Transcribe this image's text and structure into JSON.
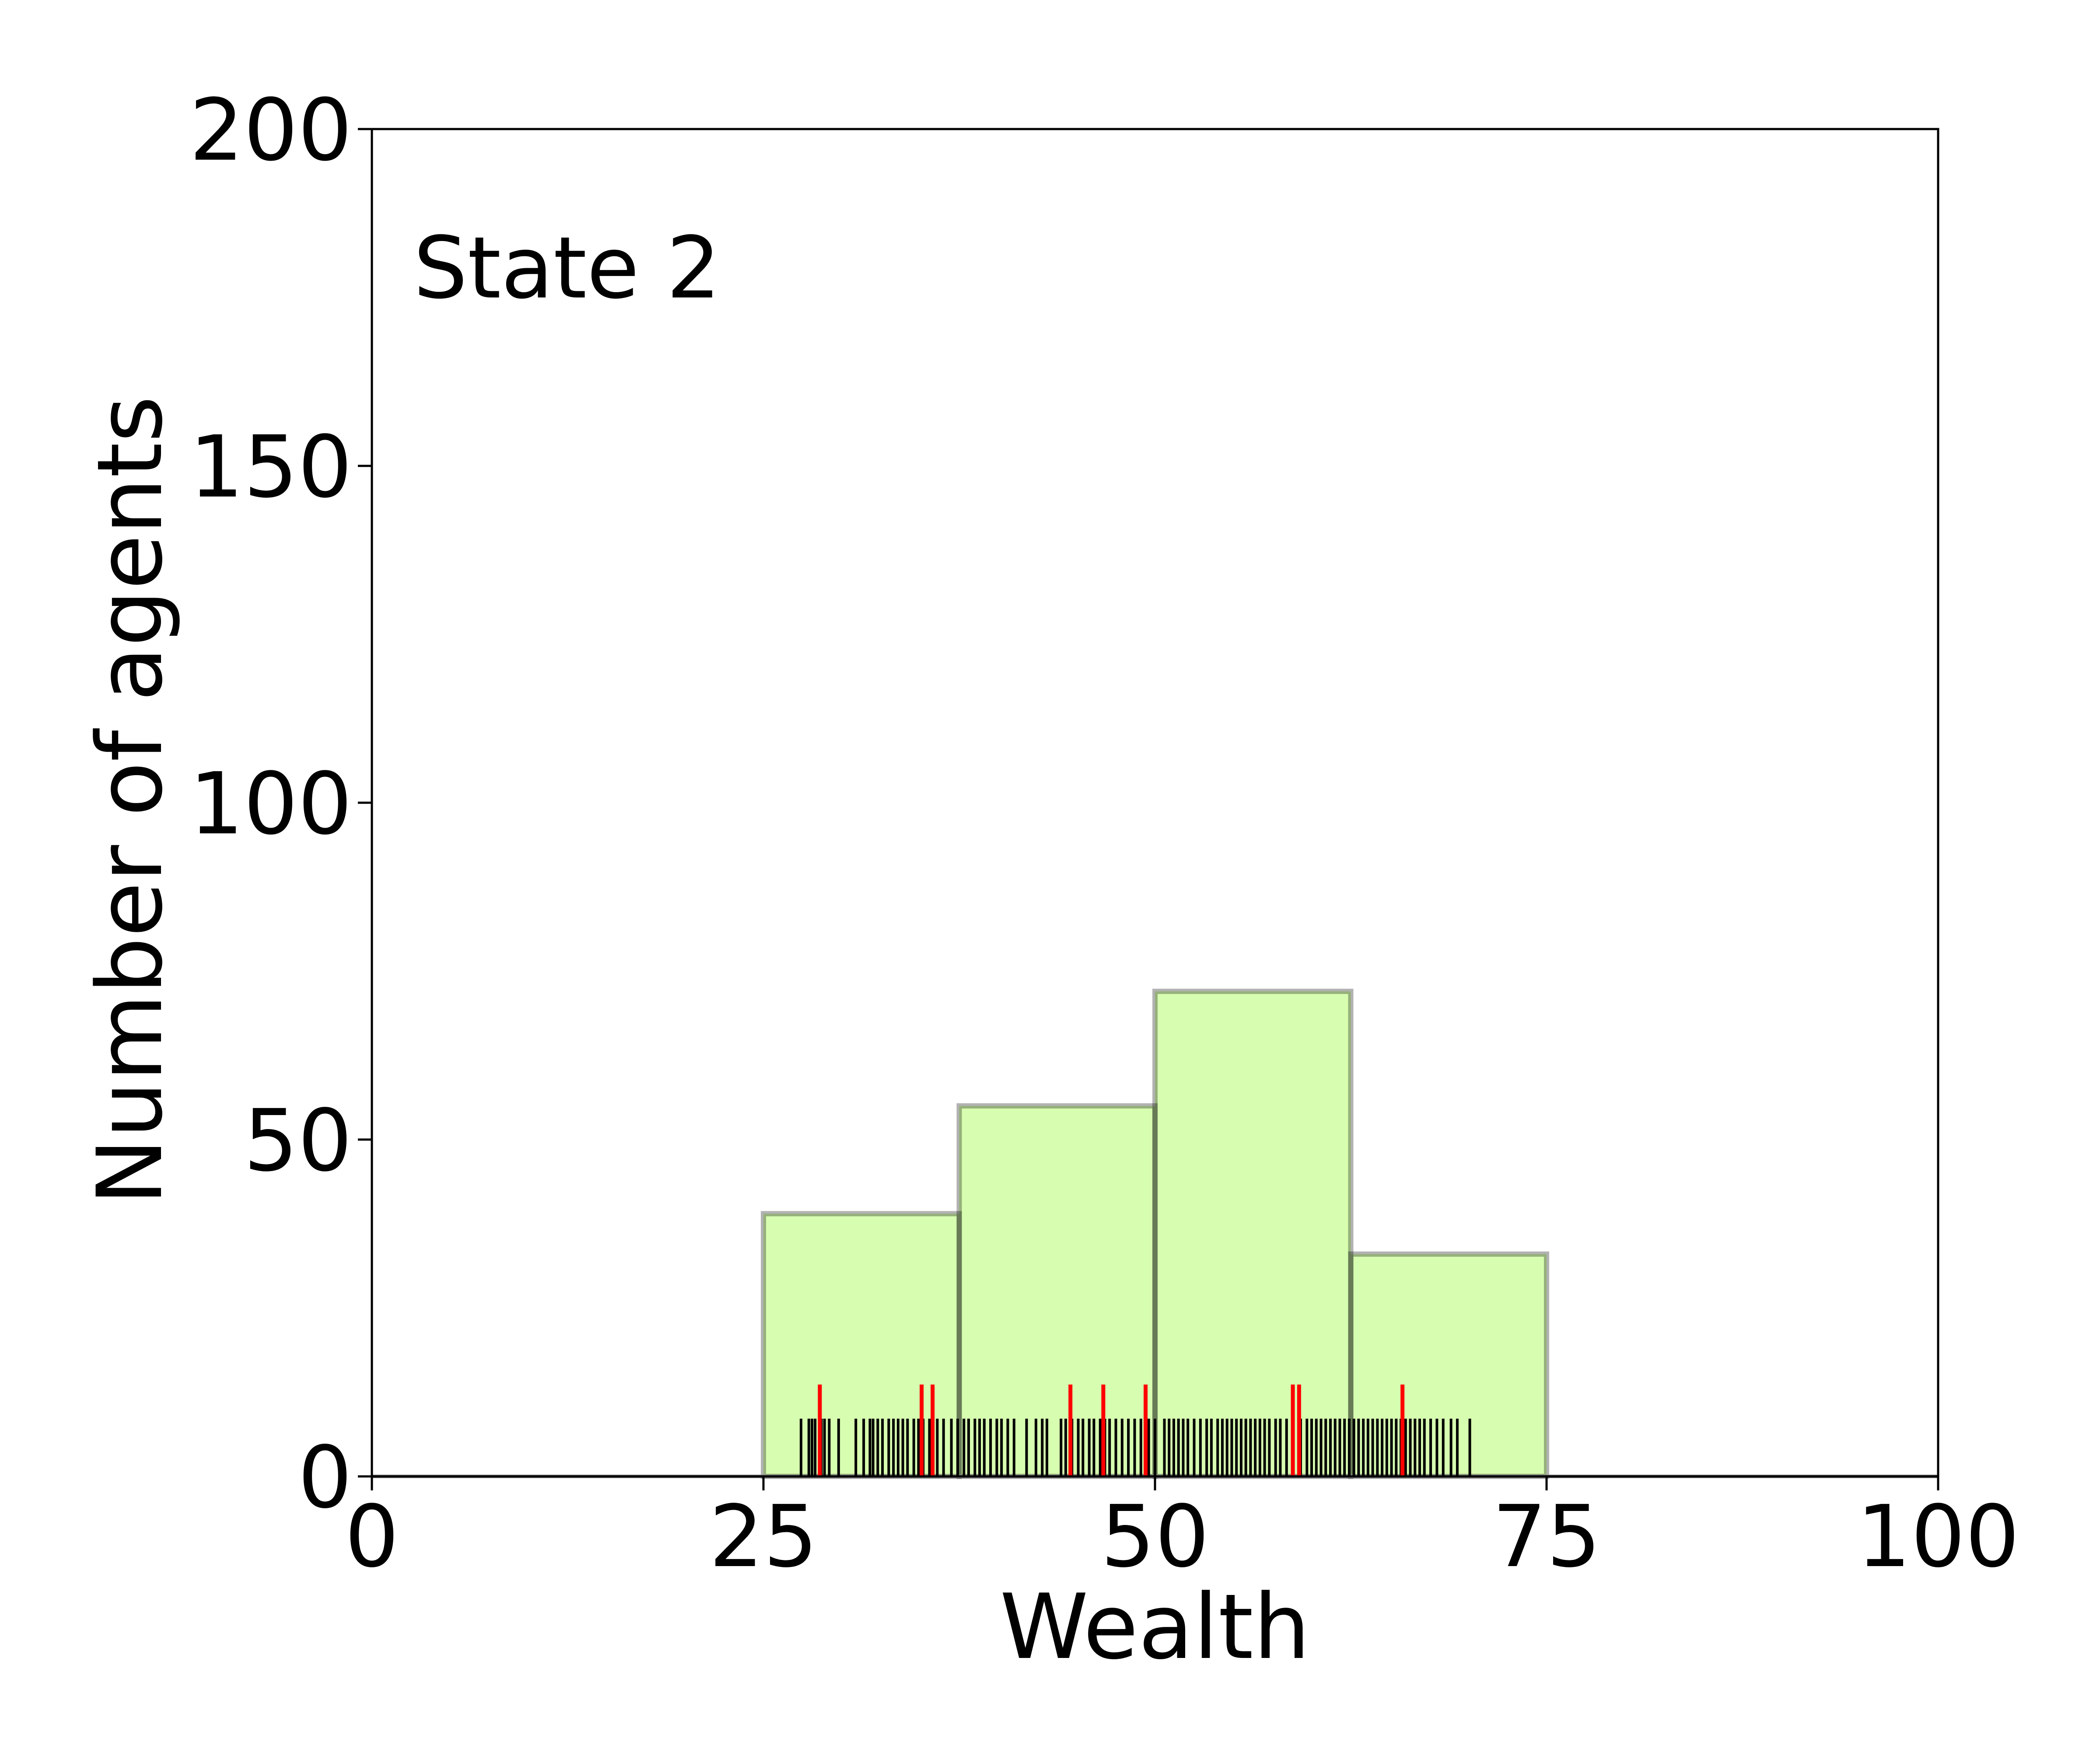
{
  "chart_data": {
    "type": "histogram",
    "annotation": "State 2",
    "xlabel": "Wealth",
    "ylabel": "Number of agents",
    "xlim": [
      0,
      100
    ],
    "ylim": [
      0,
      200
    ],
    "x_ticks": [
      0,
      25,
      50,
      75,
      100
    ],
    "y_ticks": [
      0,
      50,
      100,
      150,
      200
    ],
    "grid": false,
    "colors": {
      "bar_fill": "#d7fdb0",
      "bar_edge": "#a0a0a0",
      "rug_main": "#000000",
      "rug_highlight": "#ff0000"
    },
    "bins": [
      {
        "start": 25,
        "end": 37.5,
        "count": 39
      },
      {
        "start": 37.5,
        "end": 50,
        "count": 55
      },
      {
        "start": 50,
        "end": 62.5,
        "count": 72
      },
      {
        "start": 62.5,
        "end": 75,
        "count": 33
      }
    ],
    "rug_main_values": [
      27.4,
      27.9,
      28.1,
      28.3,
      28.7,
      28.9,
      29.2,
      29.8,
      30.9,
      31.4,
      31.8,
      32.0,
      32.3,
      32.6,
      33.0,
      33.3,
      33.6,
      33.9,
      34.2,
      34.6,
      34.9,
      35.2,
      35.6,
      36.1,
      36.5,
      37.0,
      37.4,
      37.8,
      38.1,
      38.5,
      38.8,
      39.1,
      39.5,
      39.9,
      40.2,
      40.6,
      41.0,
      41.8,
      42.4,
      42.8,
      43.1,
      44.0,
      44.3,
      44.7,
      45.1,
      45.4,
      45.8,
      46.1,
      46.5,
      46.8,
      47.1,
      47.5,
      47.9,
      48.3,
      48.7,
      49.1,
      49.6,
      50.0,
      50.6,
      50.9,
      51.2,
      51.5,
      51.8,
      52.1,
      52.5,
      52.9,
      53.3,
      53.6,
      54.0,
      54.3,
      54.6,
      54.9,
      55.2,
      55.5,
      55.8,
      56.1,
      56.4,
      56.7,
      57.0,
      57.3,
      57.7,
      58.0,
      58.4,
      58.8,
      59.3,
      59.7,
      60.0,
      60.3,
      60.6,
      60.9,
      61.2,
      61.5,
      61.8,
      62.1,
      62.4,
      62.7,
      63.0,
      63.3,
      63.6,
      63.9,
      64.2,
      64.5,
      64.8,
      65.1,
      65.4,
      65.7,
      66.0,
      66.3,
      66.6,
      66.9,
      67.2,
      67.6,
      68.0,
      68.4,
      68.9,
      69.3,
      70.1
    ],
    "rug_highlight_values": [
      28.6,
      35.1,
      35.8,
      44.6,
      46.7,
      49.4,
      58.8,
      59.2,
      65.8
    ]
  }
}
